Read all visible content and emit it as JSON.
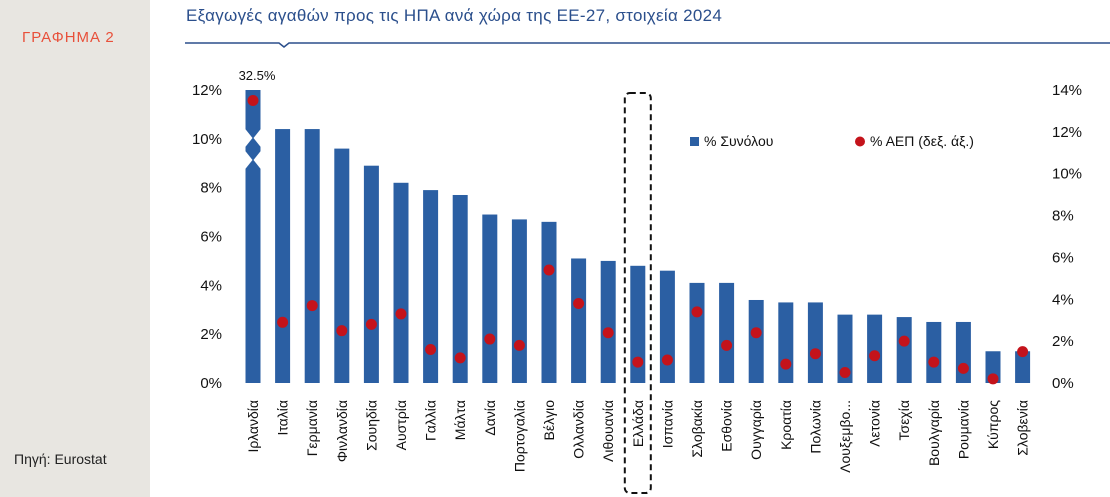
{
  "sidebar": {
    "chart_label": "ΓΡΑΦΗΜΑ 2",
    "source": "Πηγή: Eurostat"
  },
  "colors": {
    "bar": "#2b5fa3",
    "dot": "#c4131b",
    "title": "#2b4f8c",
    "label": "#e8503a"
  },
  "chart_data": {
    "type": "bar",
    "title": "Εξαγωγές αγαθών προς τις ΗΠΑ ανά χώρα της ΕΕ-27, στοιχεία 2024",
    "categories": [
      "Ιρλανδία",
      "Ιταλία",
      "Γερμανία",
      "Φινλανδία",
      "Σουηδία",
      "Αυστρία",
      "Γαλλία",
      "Μάλτα",
      "Δανία",
      "Πορτογαλία",
      "Βέλγιο",
      "Ολλανδία",
      "Λιθουανία",
      "Ελλάδα",
      "Ισπανία",
      "Σλοβακία",
      "Εσθονία",
      "Ουγγαρία",
      "Κροατία",
      "Πολωνία",
      "Λουξεμβο...",
      "Λετονία",
      "Τσεχία",
      "Βουλγαρία",
      "Ρουμανία",
      "Κύπρος",
      "Σλοβενία"
    ],
    "series": [
      {
        "name": "% Συνόλου",
        "type": "bar",
        "axis": "left",
        "values": [
          32.5,
          10.4,
          10.4,
          9.6,
          8.9,
          8.2,
          7.9,
          7.7,
          6.9,
          6.7,
          6.6,
          5.1,
          5.0,
          4.8,
          4.6,
          4.1,
          4.1,
          3.4,
          3.3,
          3.3,
          2.8,
          2.8,
          2.7,
          2.5,
          2.5,
          1.3,
          1.3
        ]
      },
      {
        "name": "% ΑΕΠ (δεξ. άξ.)",
        "type": "scatter",
        "axis": "right",
        "values": [
          13.5,
          2.9,
          3.7,
          2.5,
          2.8,
          3.3,
          1.6,
          1.2,
          2.1,
          1.8,
          5.4,
          3.8,
          2.4,
          1.0,
          1.1,
          3.4,
          1.8,
          2.4,
          0.9,
          1.4,
          0.5,
          1.3,
          2.0,
          1.0,
          0.7,
          0.2,
          1.5
        ]
      }
    ],
    "ylim": [
      0,
      12
    ],
    "y_ticks": [
      "0%",
      "2%",
      "4%",
      "6%",
      "8%",
      "10%",
      "12%"
    ],
    "y2lim": [
      0,
      14
    ],
    "y2_ticks": [
      "0%",
      "2%",
      "4%",
      "6%",
      "8%",
      "10%",
      "12%",
      "14%"
    ],
    "annotations": [
      {
        "category": "Ιρλανδία",
        "text": "32.5%"
      }
    ],
    "axis_break": "Ιρλανδία",
    "highlight": "Ελλάδα",
    "legend": "top-right",
    "grid": false
  }
}
